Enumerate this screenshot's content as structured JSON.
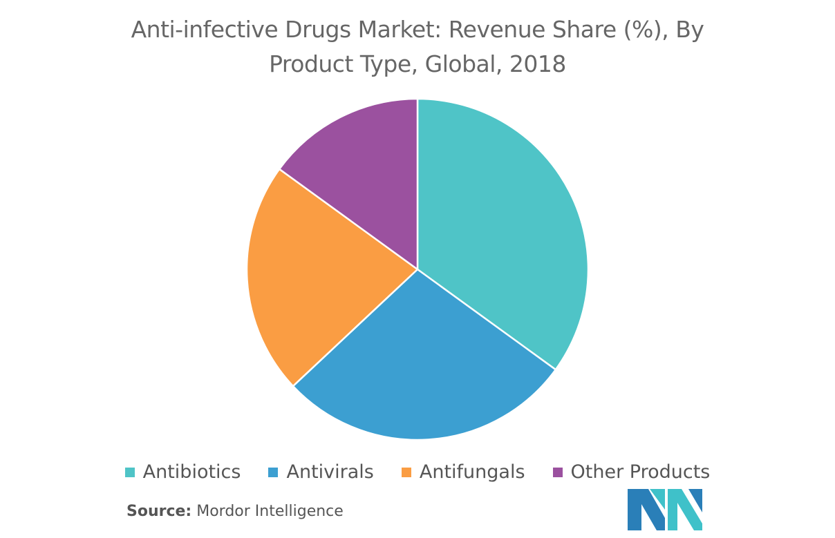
{
  "title_line1": "Anti-infective Drugs Market: Revenue Share (%), By",
  "title_line2": "Product Type, Global, 2018",
  "source_label": "Source:",
  "source_text": "Mordor Intelligence",
  "chart_data": {
    "type": "pie",
    "title": "Anti-infective Drugs Market: Revenue Share (%), By Product Type, Global, 2018",
    "start_angle_deg": 0,
    "direction": "clockwise",
    "legend_position": "bottom",
    "slices": [
      {
        "label": "Antibiotics",
        "value": 35,
        "color": "#4FC4C7"
      },
      {
        "label": "Antivirals",
        "value": 28,
        "color": "#3C9FD1"
      },
      {
        "label": "Antifungals",
        "value": 22,
        "color": "#FA9D43"
      },
      {
        "label": "Other Products",
        "value": 15,
        "color": "#9B519F"
      }
    ]
  },
  "legend": [
    {
      "label": "Antibiotics",
      "color": "#4FC4C7"
    },
    {
      "label": "Antivirals",
      "color": "#3C9FD1"
    },
    {
      "label": "Antifungals",
      "color": "#FA9D43"
    },
    {
      "label": "Other Products",
      "color": "#9B519F"
    }
  ],
  "logo": {
    "colors": [
      "#2A7FB8",
      "#3FC1C9"
    ]
  }
}
